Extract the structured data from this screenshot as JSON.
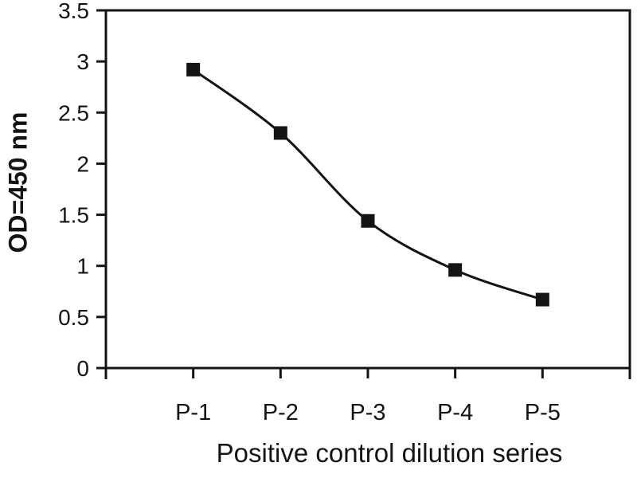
{
  "chart_data": {
    "type": "line",
    "title": "",
    "xlabel": "Positive control dilution series",
    "ylabel": "OD=450 nm",
    "categories": [
      "P-1",
      "P-2",
      "P-3",
      "P-4",
      "P-5"
    ],
    "values": [
      2.92,
      2.3,
      1.44,
      0.96,
      0.67
    ],
    "ylim": [
      0,
      3.5
    ],
    "y_tick_values": [
      3.5,
      3,
      2.5,
      2,
      1.5,
      1,
      0.5,
      0
    ],
    "y_tick_labels": [
      "3.5",
      "3",
      "2.5",
      "2",
      "1.5",
      "1",
      "0.5",
      "0"
    ],
    "grid": false,
    "legend": "none",
    "marker": "square",
    "line_smooth": true,
    "line_color": "#141414",
    "background_color": "#ffffff"
  }
}
